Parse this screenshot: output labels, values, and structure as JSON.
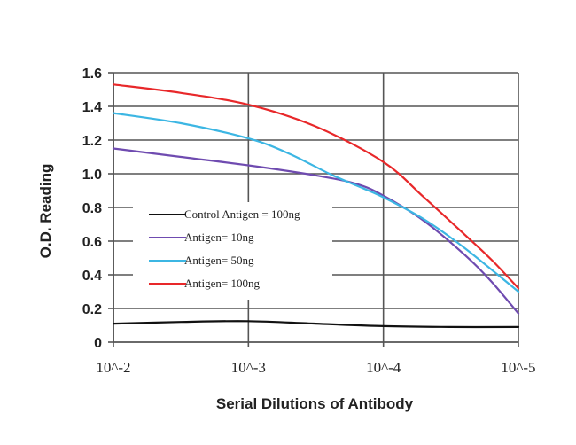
{
  "chart_data": {
    "type": "line",
    "title": "",
    "xlabel": "Serial Dilutions of Antibody",
    "ylabel": "O.D. Reading",
    "categories": [
      "10^-2",
      "10^-3",
      "10^-4",
      "10^-5"
    ],
    "x_scale": "log10 dilution exponent",
    "x_values": [
      -2,
      -3,
      -4,
      -5
    ],
    "xlim": [
      -2,
      -5
    ],
    "ylim": [
      0,
      1.6
    ],
    "y_ticks": [
      "0",
      "0.2",
      "0.4",
      "0.6",
      "0.8",
      "1.0",
      "1.2",
      "1.4",
      "1.6"
    ],
    "grid": true,
    "legend_position": "left-center",
    "series": [
      {
        "name": "Control Antigen = 100ng",
        "color": "#111111",
        "points": [
          [
            -2.0,
            0.11
          ],
          [
            -2.5,
            0.12
          ],
          [
            -3.0,
            0.125
          ],
          [
            -3.5,
            0.11
          ],
          [
            -4.0,
            0.095
          ],
          [
            -4.5,
            0.09
          ],
          [
            -5.0,
            0.09
          ]
        ]
      },
      {
        "name": "Antigen= 10ng",
        "color": "#6f4bb0",
        "points": [
          [
            -2.0,
            1.15
          ],
          [
            -2.5,
            1.1
          ],
          [
            -3.0,
            1.05
          ],
          [
            -3.5,
            0.99
          ],
          [
            -3.8,
            0.94
          ],
          [
            -4.0,
            0.87
          ],
          [
            -4.3,
            0.72
          ],
          [
            -4.6,
            0.52
          ],
          [
            -4.8,
            0.36
          ],
          [
            -5.0,
            0.17
          ]
        ]
      },
      {
        "name": "Antigen= 50ng",
        "color": "#3cb6e3",
        "points": [
          [
            -2.0,
            1.36
          ],
          [
            -2.5,
            1.3
          ],
          [
            -3.0,
            1.21
          ],
          [
            -3.3,
            1.12
          ],
          [
            -3.6,
            1.0
          ],
          [
            -3.8,
            0.93
          ],
          [
            -4.0,
            0.86
          ],
          [
            -4.3,
            0.73
          ],
          [
            -4.6,
            0.56
          ],
          [
            -5.0,
            0.3
          ]
        ]
      },
      {
        "name": "Antigen= 100ng",
        "color": "#e8282a",
        "points": [
          [
            -2.0,
            1.53
          ],
          [
            -2.5,
            1.48
          ],
          [
            -3.0,
            1.41
          ],
          [
            -3.5,
            1.28
          ],
          [
            -4.0,
            1.07
          ],
          [
            -4.3,
            0.86
          ],
          [
            -4.6,
            0.64
          ],
          [
            -4.8,
            0.49
          ],
          [
            -5.0,
            0.32
          ]
        ]
      }
    ]
  }
}
